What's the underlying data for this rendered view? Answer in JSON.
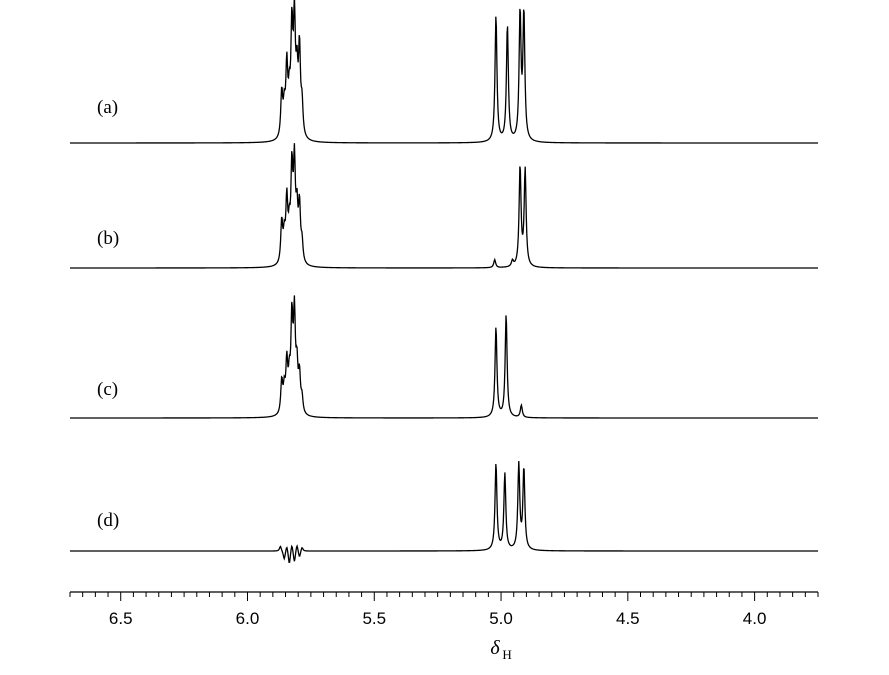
{
  "chart_data": {
    "type": "line",
    "title": "",
    "xlabel": "δ",
    "xlabel_subscript": "H",
    "ylabel": "",
    "xlim": [
      6.7,
      3.75
    ],
    "x_reversed": true,
    "grid": false,
    "x_ticks": [
      6.5,
      6.0,
      5.5,
      5.0,
      4.5,
      4.0
    ],
    "x_tick_labels": [
      "6.5",
      "6.0",
      "5.5",
      "5.0",
      "4.5",
      "4.0"
    ],
    "series": [
      {
        "label": "(a)",
        "peaks": [
          {
            "ppm": 5.865,
            "height": 0.36
          },
          {
            "ppm": 5.855,
            "height": 0.22
          },
          {
            "ppm": 5.845,
            "height": 0.55
          },
          {
            "ppm": 5.835,
            "height": 0.28
          },
          {
            "ppm": 5.825,
            "height": 0.82
          },
          {
            "ppm": 5.815,
            "height": 0.88
          },
          {
            "ppm": 5.805,
            "height": 0.45
          },
          {
            "ppm": 5.795,
            "height": 0.68
          },
          {
            "ppm": 5.785,
            "height": 0.25
          },
          {
            "ppm": 5.02,
            "height": 1.0
          },
          {
            "ppm": 4.975,
            "height": 0.92
          },
          {
            "ppm": 4.925,
            "height": 1.0
          },
          {
            "ppm": 4.91,
            "height": 1.0
          }
        ]
      },
      {
        "label": "(b)",
        "peaks": [
          {
            "ppm": 5.865,
            "height": 0.42
          },
          {
            "ppm": 5.855,
            "height": 0.25
          },
          {
            "ppm": 5.845,
            "height": 0.62
          },
          {
            "ppm": 5.835,
            "height": 0.3
          },
          {
            "ppm": 5.825,
            "height": 0.9
          },
          {
            "ppm": 5.815,
            "height": 0.95
          },
          {
            "ppm": 5.805,
            "height": 0.48
          },
          {
            "ppm": 5.795,
            "height": 0.56
          },
          {
            "ppm": 5.785,
            "height": 0.2
          },
          {
            "ppm": 5.025,
            "height": 0.08
          },
          {
            "ppm": 4.955,
            "height": 0.06
          },
          {
            "ppm": 4.925,
            "height": 1.0
          },
          {
            "ppm": 4.905,
            "height": 0.97
          }
        ]
      },
      {
        "label": "(c)",
        "peaks": [
          {
            "ppm": 5.865,
            "height": 0.32
          },
          {
            "ppm": 5.855,
            "height": 0.22
          },
          {
            "ppm": 5.845,
            "height": 0.48
          },
          {
            "ppm": 5.835,
            "height": 0.3
          },
          {
            "ppm": 5.825,
            "height": 0.88
          },
          {
            "ppm": 5.815,
            "height": 0.92
          },
          {
            "ppm": 5.805,
            "height": 0.42
          },
          {
            "ppm": 5.795,
            "height": 0.36
          },
          {
            "ppm": 5.785,
            "height": 0.15
          },
          {
            "ppm": 5.02,
            "height": 0.88
          },
          {
            "ppm": 4.98,
            "height": 1.0
          },
          {
            "ppm": 4.92,
            "height": 0.12
          }
        ]
      },
      {
        "label": "(d)",
        "peaks": [
          {
            "ppm": 5.87,
            "height": 0.06
          },
          {
            "ppm": 5.855,
            "height": -0.1
          },
          {
            "ppm": 5.845,
            "height": 0.08
          },
          {
            "ppm": 5.835,
            "height": -0.16
          },
          {
            "ppm": 5.825,
            "height": 0.1
          },
          {
            "ppm": 5.815,
            "height": -0.14
          },
          {
            "ppm": 5.805,
            "height": 0.09
          },
          {
            "ppm": 5.795,
            "height": -0.08
          },
          {
            "ppm": 5.785,
            "height": 0.05
          },
          {
            "ppm": 5.02,
            "height": 1.0
          },
          {
            "ppm": 4.985,
            "height": 0.88
          },
          {
            "ppm": 4.93,
            "height": 0.98
          },
          {
            "ppm": 4.91,
            "height": 0.94
          }
        ]
      }
    ]
  }
}
